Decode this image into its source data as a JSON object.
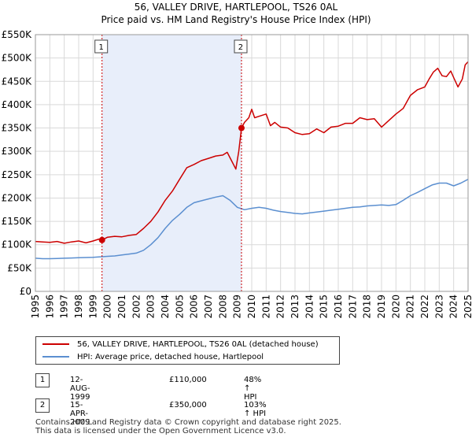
{
  "title_line1": "56, VALLEY DRIVE, HARTLEPOOL, TS26 0AL",
  "title_line2": "Price paid vs. HM Land Registry's House Price Index (HPI)",
  "legend": {
    "property_label": "56, VALLEY DRIVE, HARTLEPOOL, TS26 0AL (detached house)",
    "hpi_label": "HPI: Average price, detached house, Hartlepool"
  },
  "sales": [
    {
      "num": "1",
      "date": "12-AUG-1999",
      "price": "£110,000",
      "hpi": "48% ↑ HPI"
    },
    {
      "num": "2",
      "date": "15-APR-2009",
      "price": "£350,000",
      "hpi": "103% ↑ HPI"
    }
  ],
  "footer": {
    "line1": "Contains HM Land Registry data © Crown copyright and database right 2025.",
    "line2": "This data is licensed under the Open Government Licence v3.0."
  },
  "colors": {
    "property": "#cc0000",
    "hpi": "#5b8fd0",
    "shade": "#e8eefa",
    "grid": "#d9d9d9"
  },
  "chart_data": {
    "type": "line",
    "xlabel": "",
    "ylabel": "",
    "xlim": [
      1995,
      2025
    ],
    "ylim": [
      0,
      550000
    ],
    "yticks": [
      0,
      50000,
      100000,
      150000,
      200000,
      250000,
      300000,
      350000,
      400000,
      450000,
      500000,
      550000
    ],
    "ytick_labels": [
      "£0",
      "£50K",
      "£100K",
      "£150K",
      "£200K",
      "£250K",
      "£300K",
      "£350K",
      "£400K",
      "£450K",
      "£500K",
      "£550K"
    ],
    "xticks": [
      1995,
      1996,
      1997,
      1998,
      1999,
      2000,
      2001,
      2002,
      2003,
      2004,
      2005,
      2006,
      2007,
      2008,
      2009,
      2010,
      2011,
      2012,
      2013,
      2014,
      2015,
      2016,
      2017,
      2018,
      2019,
      2020,
      2021,
      2022,
      2023,
      2024,
      2025
    ],
    "shaded_period": [
      1999.62,
      2009.29
    ],
    "markers": [
      {
        "label": "1",
        "x": 1999.62,
        "y": 110000
      },
      {
        "label": "2",
        "x": 2009.29,
        "y": 350000
      }
    ],
    "series": [
      {
        "name": "56, VALLEY DRIVE, HARTLEPOOL, TS26 0AL (detached house)",
        "x": [
          1995,
          1995.5,
          1996,
          1996.5,
          1997,
          1997.5,
          1998,
          1998.5,
          1999,
          1999.4,
          1999.62,
          2000,
          2000.5,
          2001,
          2001.5,
          2002,
          2002.5,
          2003,
          2003.5,
          2004,
          2004.5,
          2005,
          2005.5,
          2006,
          2006.5,
          2007,
          2007.5,
          2008,
          2008.3,
          2008.6,
          2008.9,
          2009.1,
          2009.29,
          2009.5,
          2009.8,
          2010,
          2010.2,
          2010.5,
          2011,
          2011.3,
          2011.6,
          2012,
          2012.5,
          2013,
          2013.5,
          2014,
          2014.5,
          2015,
          2015.5,
          2016,
          2016.5,
          2017,
          2017.5,
          2018,
          2018.5,
          2019,
          2019.5,
          2020,
          2020.5,
          2021,
          2021.5,
          2022,
          2022.3,
          2022.6,
          2022.9,
          2023.2,
          2023.5,
          2023.8,
          2024,
          2024.3,
          2024.6,
          2024.8,
          2025
        ],
        "values": [
          107000,
          106000,
          105000,
          107000,
          103000,
          106000,
          108000,
          104000,
          108000,
          112000,
          110000,
          116000,
          118000,
          117000,
          120000,
          122000,
          135000,
          150000,
          170000,
          195000,
          215000,
          240000,
          265000,
          272000,
          280000,
          285000,
          290000,
          292000,
          298000,
          280000,
          262000,
          300000,
          350000,
          362000,
          372000,
          390000,
          372000,
          375000,
          380000,
          355000,
          362000,
          352000,
          350000,
          340000,
          336000,
          338000,
          348000,
          340000,
          352000,
          354000,
          360000,
          360000,
          372000,
          368000,
          370000,
          352000,
          366000,
          380000,
          392000,
          420000,
          432000,
          438000,
          455000,
          470000,
          478000,
          462000,
          460000,
          472000,
          458000,
          438000,
          455000,
          485000,
          492000
        ]
      },
      {
        "name": "HPI: Average price, detached house, Hartlepool",
        "x": [
          1995,
          1995.5,
          1996,
          1996.5,
          1997,
          1997.5,
          1998,
          1998.5,
          1999,
          1999.5,
          2000,
          2000.5,
          2001,
          2001.5,
          2002,
          2002.5,
          2003,
          2003.5,
          2004,
          2004.5,
          2005,
          2005.5,
          2006,
          2006.5,
          2007,
          2007.5,
          2008,
          2008.5,
          2009,
          2009.5,
          2010,
          2010.5,
          2011,
          2011.5,
          2012,
          2012.5,
          2013,
          2013.5,
          2014,
          2014.5,
          2015,
          2015.5,
          2016,
          2016.5,
          2017,
          2017.5,
          2018,
          2018.5,
          2019,
          2019.5,
          2020,
          2020.5,
          2021,
          2021.5,
          2022,
          2022.5,
          2023,
          2023.5,
          2024,
          2024.5,
          2025
        ],
        "values": [
          71000,
          70000,
          70000,
          70500,
          71000,
          71500,
          72000,
          72500,
          73000,
          74000,
          75000,
          76000,
          78000,
          80000,
          82000,
          88000,
          100000,
          115000,
          135000,
          152000,
          165000,
          180000,
          190000,
          194000,
          198000,
          202000,
          205000,
          195000,
          180000,
          175000,
          178000,
          180000,
          178000,
          174000,
          171000,
          169000,
          167000,
          166000,
          168000,
          170000,
          172000,
          174000,
          176000,
          178000,
          180000,
          181000,
          183000,
          184000,
          185000,
          184000,
          186000,
          195000,
          205000,
          212000,
          220000,
          228000,
          232000,
          232000,
          226000,
          232000,
          240000
        ]
      }
    ]
  }
}
